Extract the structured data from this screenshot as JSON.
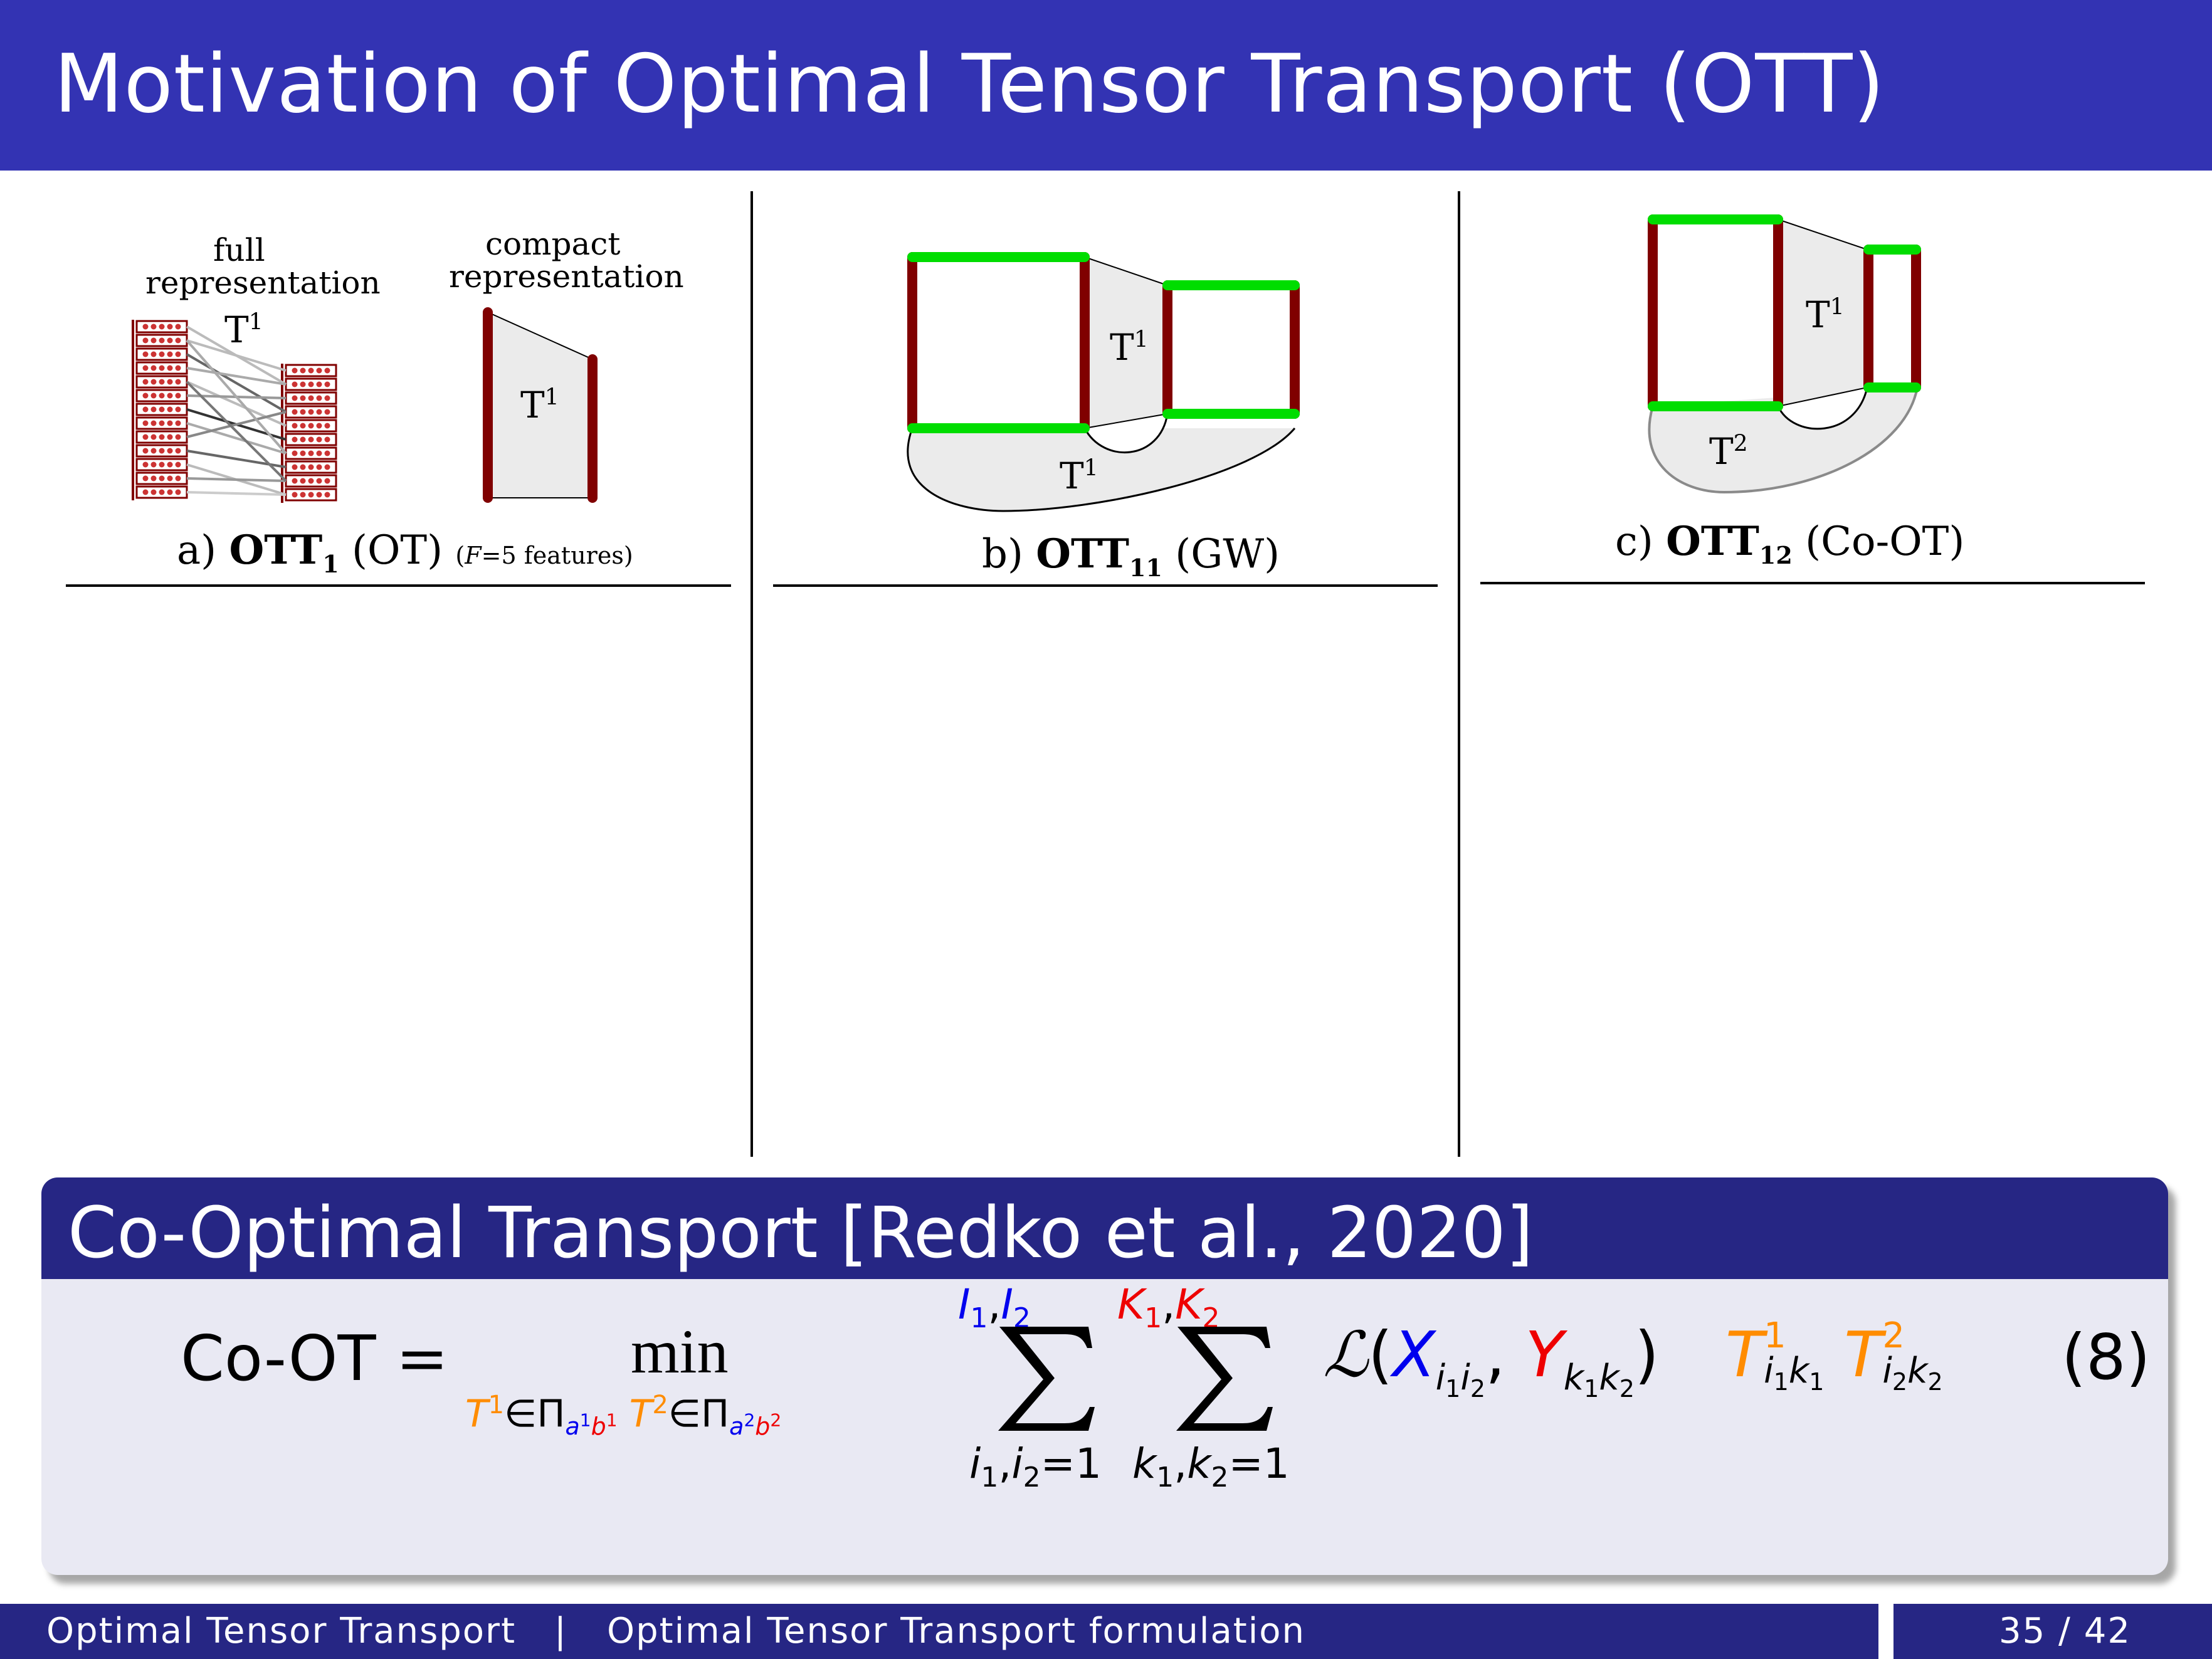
{
  "header": {
    "title": "Motivation of Optimal Tensor Transport (OTT)"
  },
  "panel_a": {
    "full_label_1": "full",
    "full_label_2": "representation",
    "compact_label_1": "compact",
    "compact_label_2": "representation",
    "t_full": "T",
    "t_full_sup": "1",
    "t_compact": "T",
    "t_compact_sup": "1",
    "caption_prefix": "a) ",
    "caption_bold": "OTT",
    "caption_sub": "1",
    "caption_suffix": " (OT) ",
    "caption_note_var": "F",
    "caption_note_rest": "=5 features)",
    "caption_note_open": "("
  },
  "panel_b": {
    "t_top": "T",
    "t_top_sup": "1",
    "t_bottom": "T",
    "t_bottom_sup": "1",
    "caption_prefix": "b) ",
    "caption_bold": "OTT",
    "caption_sub": "11",
    "caption_suffix": " (GW)"
  },
  "panel_c": {
    "t_top": "T",
    "t_top_sup": "1",
    "t_bottom": "T",
    "t_bottom_sup": "2",
    "caption_prefix": "c) ",
    "caption_bold": "OTT",
    "caption_sub": "12",
    "caption_suffix": " (Co-OT)"
  },
  "block": {
    "title": "Co-Optimal Transport [Redko et al., 2020]",
    "lhs": "Co-OT",
    "equals": "=",
    "min": "min",
    "T": "T",
    "sup1": "1",
    "sup2": "2",
    "in_pi": "∈Π",
    "sub_a": "a",
    "sub_b": "b",
    "sum1_upper_I1": "I",
    "sum1_upper_sep": ",",
    "sum1_upper_I2": "I",
    "idx1": "1",
    "idx2": "2",
    "sum2_upper_K1": "K",
    "sum2_upper_K2": "K",
    "sum1_lower": "i",
    "sum2_lower": "k",
    "eq_one": "=1",
    "L": "ℒ",
    "X": "X",
    "Y": "Y",
    "i": "i",
    "k": "k",
    "equation_number": "(8)"
  },
  "footer": {
    "left_title": "Optimal Tensor Transport",
    "separator": "|",
    "section": "Optimal Tensor Transport formulation",
    "page": "35 / 42"
  },
  "colors": {
    "titlebar": "#3333b3",
    "block_header": "#262684",
    "block_body": "#e9e9f3",
    "maroon": "#800000",
    "green": "#00dd00",
    "blue": "#0000ee",
    "red": "#ee0000",
    "orange": "#ff8c00"
  }
}
